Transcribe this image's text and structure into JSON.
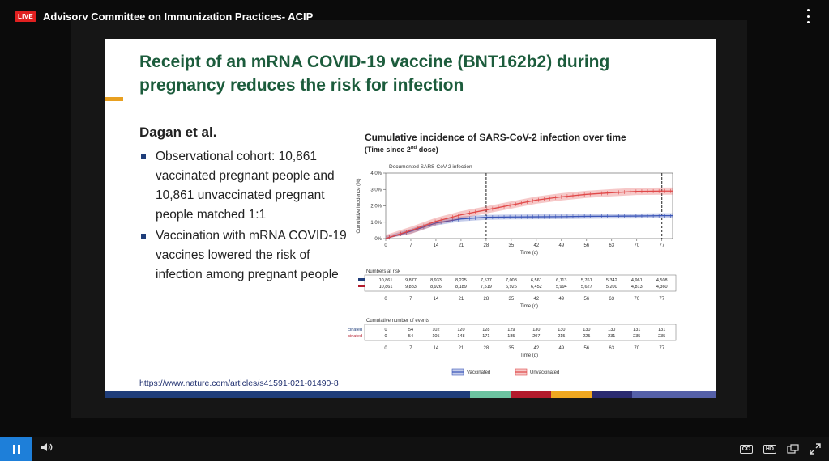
{
  "player": {
    "live_label": "LIVE",
    "title": "Advisory Committee on Immunization Practices- ACIP",
    "controls": {
      "cc_label": "CC",
      "hd_label": "HD"
    }
  },
  "slide": {
    "title": "Receipt of an mRNA COVID-19 vaccine (BNT162b2) during pregnancy reduces the risk for infection",
    "author": "Dagan et al.",
    "bullets": [
      "Observational cohort: 10,861 vaccinated pregnant people and 10,861 unvaccinated pregnant people matched 1:1",
      "Vaccination with mRNA COVID-19 vaccines lowered the risk of infection among pregnant people"
    ],
    "source_url": "https://www.nature.com/articles/s41591-021-01490-8",
    "stripe_colors": [
      "#1f3d7a",
      "#1f3d7a",
      "#6cc3a0",
      "#b31b2c",
      "#f0a820",
      "#2a2a70",
      "#5560a8"
    ]
  },
  "chart": {
    "title": "Cumulative incidence of SARS-CoV-2 infection over time",
    "subtitle_pre": "(Time since 2",
    "subtitle_sup": "nd",
    "subtitle_post": " dose)"
  },
  "chart_data": {
    "type": "line",
    "panel_label": "Documented SARS-CoV-2 infection",
    "ylabel": "Cumulative incidence (%)",
    "xlabel": "Time (d)",
    "x_ticks": [
      0,
      7,
      14,
      21,
      28,
      35,
      42,
      49,
      56,
      63,
      70,
      77
    ],
    "y_ticks": [
      "0%",
      "1.0%",
      "2.0%",
      "3.0%",
      "4.0%"
    ],
    "ylim": [
      0,
      4
    ],
    "xlim": [
      0,
      80
    ],
    "reference_lines_x": [
      28,
      77
    ],
    "series": [
      {
        "name": "Vaccinated",
        "color": "#3a55b8",
        "x": [
          0,
          7,
          14,
          21,
          28,
          35,
          42,
          49,
          56,
          63,
          70,
          77,
          80
        ],
        "values": [
          0,
          0.45,
          0.95,
          1.2,
          1.3,
          1.32,
          1.33,
          1.34,
          1.36,
          1.37,
          1.38,
          1.4,
          1.4
        ],
        "ci_halfwidth": 0.15
      },
      {
        "name": "Unvaccinated",
        "color": "#e04848",
        "x": [
          0,
          7,
          14,
          21,
          28,
          35,
          42,
          49,
          56,
          63,
          70,
          77,
          80
        ],
        "values": [
          0,
          0.5,
          1.05,
          1.45,
          1.75,
          2.05,
          2.35,
          2.55,
          2.7,
          2.8,
          2.88,
          2.9,
          2.9
        ],
        "ci_halfwidth": 0.22
      }
    ],
    "numbers_at_risk": {
      "title": "Numbers at risk",
      "rows": [
        [
          "10,861",
          "9,877",
          "8,933",
          "8,225",
          "7,577",
          "7,008",
          "6,561",
          "6,113",
          "5,761",
          "5,342",
          "4,961",
          "4,508"
        ],
        [
          "10,861",
          "9,883",
          "8,926",
          "8,189",
          "7,519",
          "6,926",
          "6,452",
          "5,994",
          "5,627",
          "5,200",
          "4,813",
          "4,360"
        ]
      ],
      "row_colors": [
        "#1f3d7a",
        "#b31b2c"
      ]
    },
    "cumulative_events": {
      "title": "Cumulative number of events",
      "row_labels": [
        "Vaccinated",
        "Unvaccinated"
      ],
      "row_colors": [
        "#1f3d7a",
        "#b31b2c"
      ],
      "rows": [
        [
          "0",
          "54",
          "102",
          "120",
          "128",
          "129",
          "130",
          "130",
          "130",
          "130",
          "131",
          "131"
        ],
        [
          "0",
          "54",
          "105",
          "148",
          "171",
          "185",
          "207",
          "215",
          "225",
          "231",
          "235",
          "235"
        ]
      ]
    },
    "legend": [
      "Vaccinated",
      "Unvaccinated"
    ]
  }
}
